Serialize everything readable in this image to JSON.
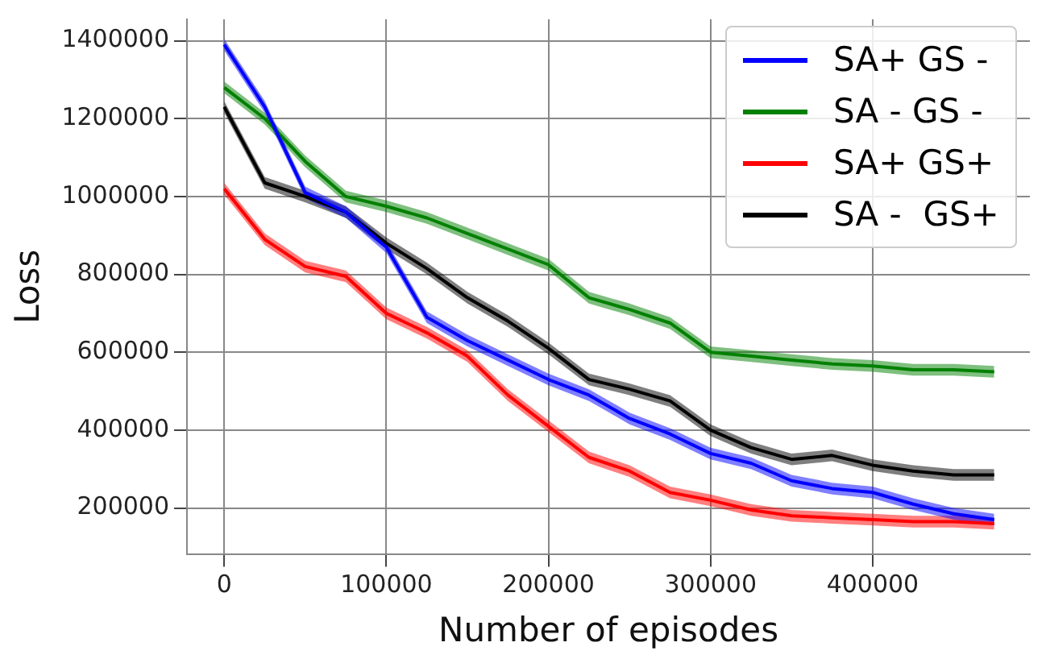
{
  "chart_data": {
    "type": "line",
    "xlabel": "Number of episodes",
    "ylabel": "Loss",
    "x": [
      0,
      25000,
      50000,
      75000,
      100000,
      125000,
      150000,
      175000,
      200000,
      225000,
      250000,
      275000,
      300000,
      325000,
      350000,
      375000,
      400000,
      425000,
      450000,
      475000
    ],
    "xlim": [
      -23000,
      497000
    ],
    "xticks": [
      0,
      100000,
      200000,
      300000,
      400000
    ],
    "ylim": [
      82000,
      1455000
    ],
    "yticks": [
      200000,
      400000,
      600000,
      800000,
      1000000,
      1200000,
      1400000
    ],
    "grid": true,
    "legend": "top right",
    "marker": "none",
    "line_style": "solid",
    "series": [
      {
        "name": "SA+ GS -",
        "color": "#0000ff",
        "values": [
          1390000,
          1230000,
          1010000,
          960000,
          870000,
          690000,
          630000,
          580000,
          530000,
          490000,
          430000,
          390000,
          340000,
          315000,
          270000,
          250000,
          240000,
          210000,
          185000,
          170000
        ],
        "lower": [
          1375000,
          1215000,
          995000,
          945000,
          855000,
          675000,
          615000,
          565000,
          515000,
          475000,
          415000,
          375000,
          325000,
          300000,
          255000,
          235000,
          225000,
          195000,
          170000,
          155000
        ],
        "upper": [
          1405000,
          1245000,
          1025000,
          975000,
          885000,
          705000,
          645000,
          595000,
          545000,
          505000,
          445000,
          405000,
          355000,
          330000,
          285000,
          265000,
          255000,
          225000,
          200000,
          185000
        ]
      },
      {
        "name": "SA - GS -",
        "color": "#008000",
        "values": [
          1280000,
          1200000,
          1090000,
          1000000,
          975000,
          945000,
          905000,
          865000,
          825000,
          740000,
          710000,
          675000,
          600000,
          590000,
          580000,
          570000,
          565000,
          555000,
          555000,
          550000
        ],
        "lower": [
          1265000,
          1185000,
          1075000,
          985000,
          960000,
          930000,
          890000,
          850000,
          810000,
          725000,
          695000,
          660000,
          585000,
          575000,
          565000,
          555000,
          550000,
          540000,
          540000,
          535000
        ],
        "upper": [
          1295000,
          1215000,
          1105000,
          1015000,
          990000,
          960000,
          920000,
          880000,
          840000,
          755000,
          725000,
          690000,
          615000,
          605000,
          595000,
          585000,
          580000,
          570000,
          570000,
          565000
        ]
      },
      {
        "name": "SA+ GS+",
        "color": "#ff0000",
        "values": [
          1020000,
          890000,
          820000,
          795000,
          700000,
          650000,
          590000,
          490000,
          410000,
          330000,
          295000,
          240000,
          220000,
          195000,
          180000,
          175000,
          170000,
          165000,
          165000,
          160000
        ],
        "lower": [
          1005000,
          875000,
          805000,
          780000,
          685000,
          635000,
          575000,
          475000,
          395000,
          315000,
          280000,
          225000,
          205000,
          180000,
          165000,
          160000,
          155000,
          150000,
          150000,
          145000
        ],
        "upper": [
          1035000,
          905000,
          835000,
          810000,
          715000,
          665000,
          605000,
          505000,
          425000,
          345000,
          310000,
          255000,
          235000,
          210000,
          195000,
          190000,
          185000,
          180000,
          180000,
          175000
        ]
      },
      {
        "name": "SA -  GS+",
        "color": "#000000",
        "values": [
          1230000,
          1035000,
          1000000,
          960000,
          880000,
          815000,
          740000,
          680000,
          610000,
          530000,
          505000,
          475000,
          400000,
          355000,
          325000,
          335000,
          310000,
          295000,
          285000,
          285000
        ],
        "lower": [
          1215000,
          1020000,
          985000,
          945000,
          865000,
          800000,
          725000,
          665000,
          595000,
          515000,
          490000,
          460000,
          385000,
          340000,
          310000,
          320000,
          295000,
          280000,
          270000,
          270000
        ],
        "upper": [
          1245000,
          1050000,
          1015000,
          975000,
          895000,
          830000,
          755000,
          695000,
          625000,
          545000,
          520000,
          490000,
          415000,
          370000,
          340000,
          350000,
          325000,
          310000,
          300000,
          300000
        ]
      }
    ]
  }
}
